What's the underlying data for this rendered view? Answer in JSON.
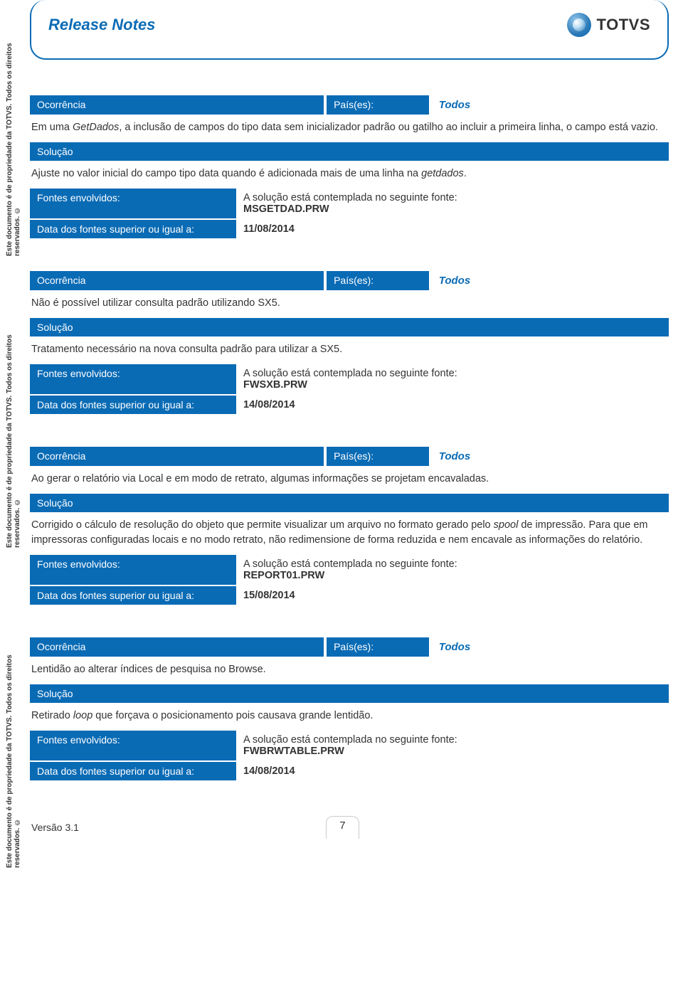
{
  "colors": {
    "primary": "#0a6bb5",
    "text": "#333333",
    "white": "#ffffff"
  },
  "sideText": "Este documento é de propriedade da TOTVS. Todos os direitos reservados. ©",
  "header": {
    "title": "Release Notes",
    "brand": "TOTVS"
  },
  "labels": {
    "ocorrencia": "Ocorrência",
    "paises": "País(es):",
    "solucao": "Solução",
    "fontes": "Fontes envolvidos:",
    "dataFontes": "Data dos fontes superior ou igual a:",
    "fontePrefix": "A solução está contemplada no seguinte fonte:"
  },
  "blocks": [
    {
      "country": "Todos",
      "ocorrencia_html": "Em uma <em>GetDados</em>, a inclusão de campos do tipo data sem inicializador padrão ou gatilho ao incluir a primeira linha, o campo está vazio.",
      "solucao_html": "Ajuste no valor inicial do campo tipo data quando é adicionada mais de uma linha na <em>getdados</em>.",
      "fonte": "MSGETDAD.PRW",
      "data": "11/08/2014"
    },
    {
      "country": "Todos",
      "ocorrencia_html": "Não é possível utilizar consulta padrão utilizando SX5.",
      "solucao_html": "Tratamento necessário na nova consulta padrão para utilizar a SX5.",
      "fonte": "FWSXB.PRW",
      "data": "14/08/2014"
    },
    {
      "country": "Todos",
      "ocorrencia_html": "Ao gerar o relatório via Local e em modo de retrato, algumas informações se projetam encavaladas.",
      "solucao_html": "Corrigido o cálculo de resolução do objeto que permite visualizar um arquivo no formato gerado pelo <em>spool</em> de impressão. Para que em impressoras configuradas locais e no modo retrato, não redimensione de forma reduzida e nem encavale as informações do relatório.",
      "fonte": "REPORT01.PRW",
      "data": "15/08/2014"
    },
    {
      "country": "Todos",
      "ocorrencia_html": "Lentidão ao alterar índices de pesquisa no Browse.",
      "solucao_html": "Retirado <em>loop</em> que forçava o posicionamento pois causava grande lentidão.",
      "fonte": "FWBRWTABLE.PRW",
      "data": "14/08/2014"
    }
  ],
  "footer": {
    "version": "Versão 3.1",
    "page": "7"
  }
}
